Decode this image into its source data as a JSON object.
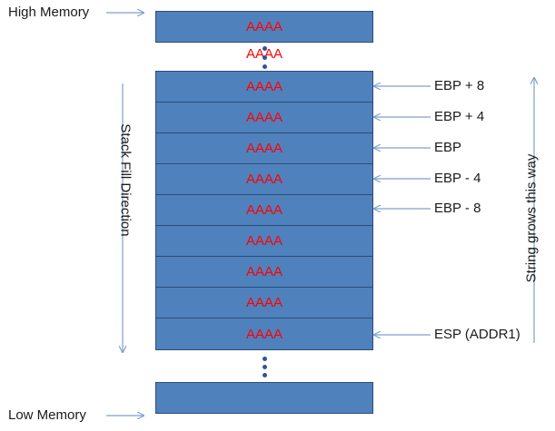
{
  "labels": {
    "high_memory": "High Memory",
    "low_memory": "Low Memory",
    "stack_fill_direction": "Stack Fill Direction",
    "string_grows": "String grows this way"
  },
  "blocks": {
    "top_fill": "AAAA",
    "floating_fill": "AAAA",
    "rows": [
      "AAAA",
      "AAAA",
      "AAAA",
      "AAAA",
      "AAAA",
      "AAAA",
      "AAAA",
      "AAAA",
      "AAAA"
    ],
    "bottom_fill": ""
  },
  "pointers": [
    "EBP + 8",
    "EBP + 4",
    "EBP",
    "EBP - 4",
    "EBP - 8",
    "ESP (ADDR1)"
  ],
  "colors": {
    "block_fill": "#4f81bd",
    "block_border": "#2c4d75",
    "fill_text": "#ff0000",
    "arrow": "#7f9fcf",
    "dots": "#2f5597"
  }
}
